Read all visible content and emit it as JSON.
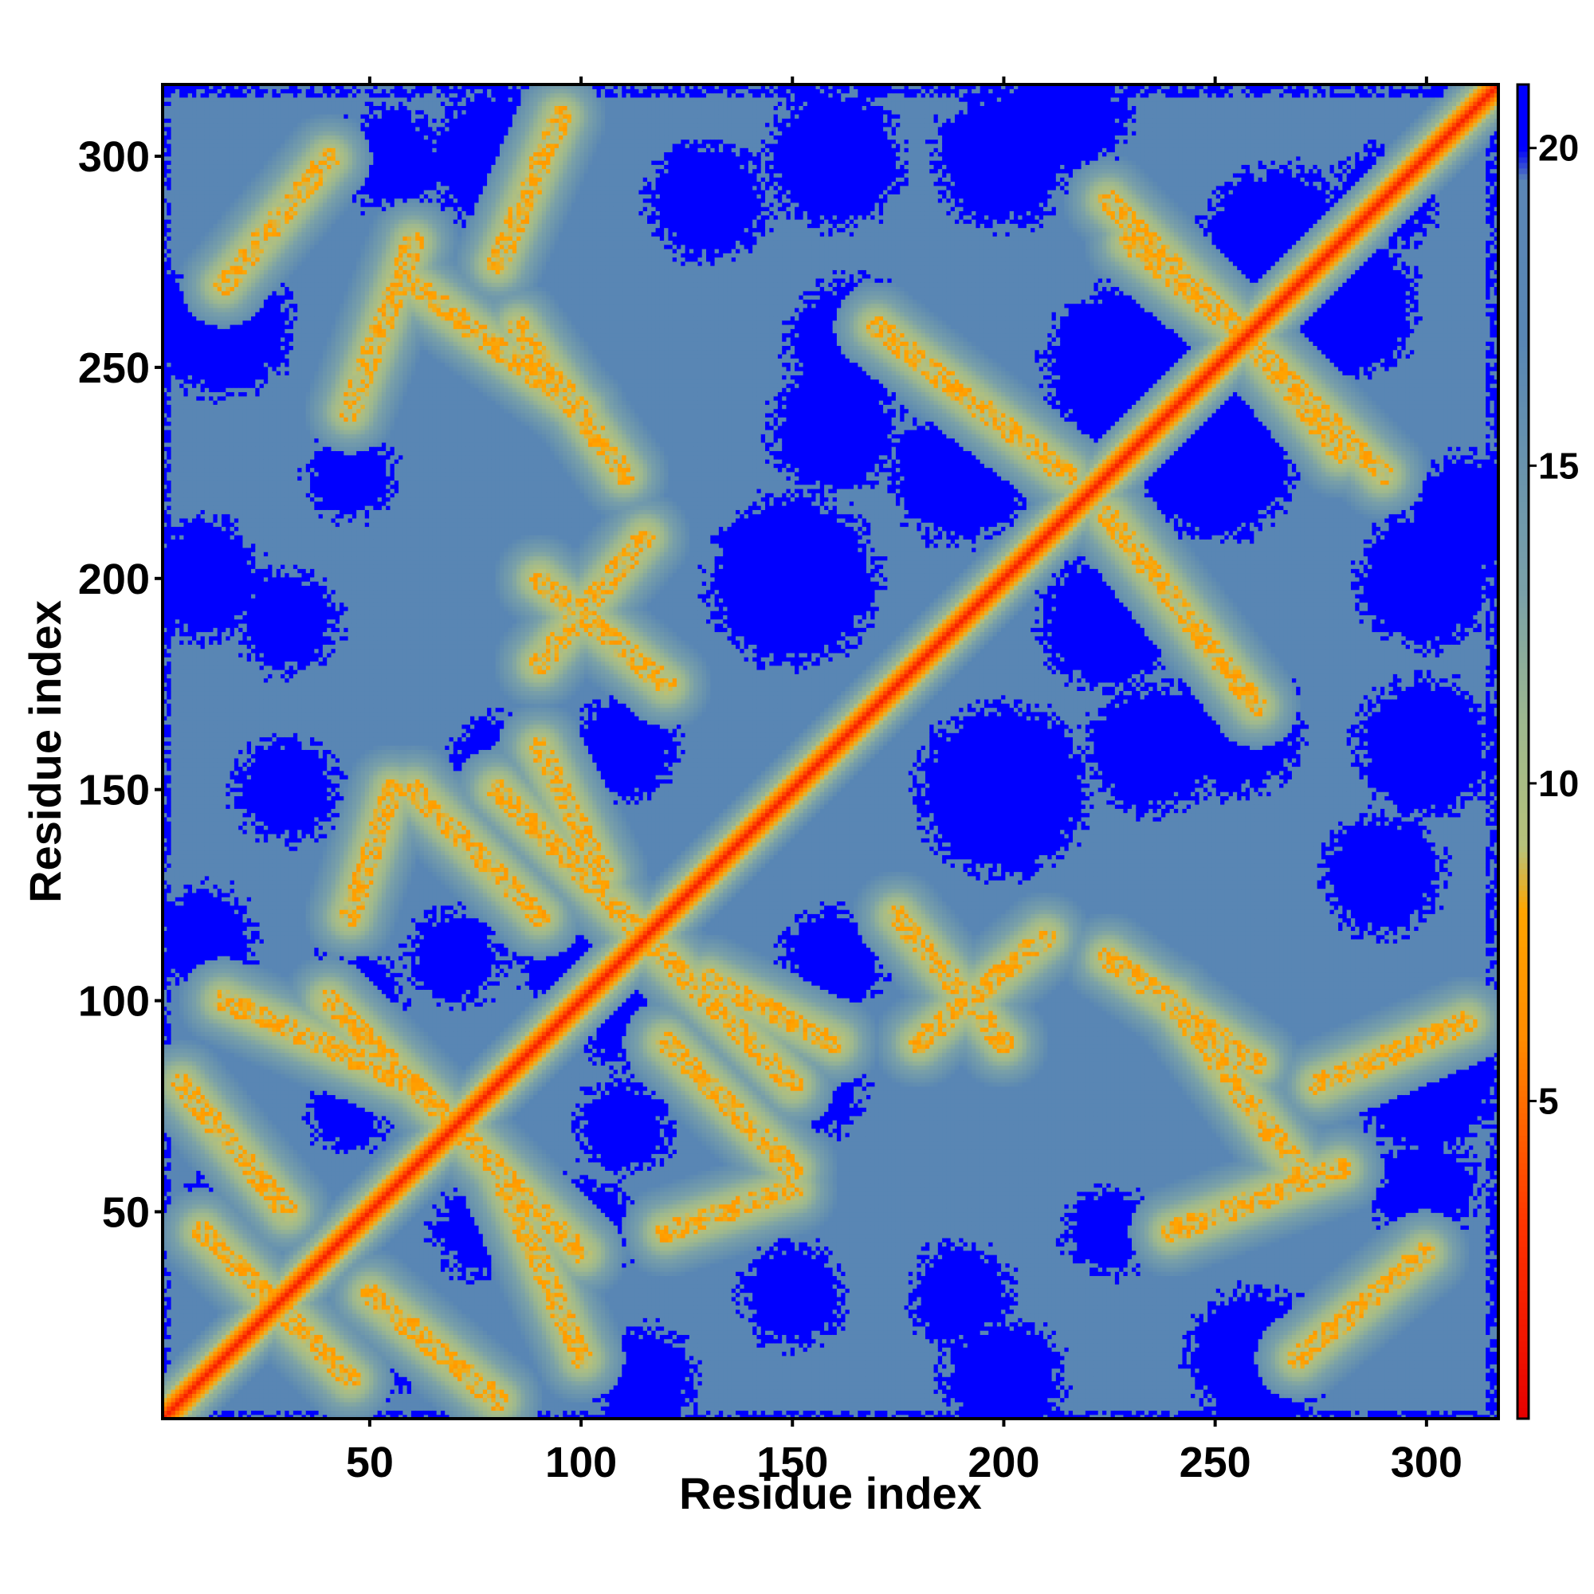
{
  "chart_data": {
    "type": "heatmap",
    "title": "",
    "xlabel": "Residue index",
    "ylabel": "Residue index",
    "xlim": [
      1,
      317
    ],
    "ylim": [
      1,
      317
    ],
    "n_residues": 317,
    "x_ticks": [
      50,
      100,
      150,
      200,
      250,
      300
    ],
    "y_ticks": [
      50,
      100,
      150,
      200,
      250,
      300
    ],
    "x_tick_labels": [
      "50",
      "100",
      "150",
      "200",
      "250",
      "300"
    ],
    "y_tick_labels": [
      "50",
      "100",
      "150",
      "200",
      "250",
      "300"
    ],
    "colorbar": {
      "range": [
        0,
        21
      ],
      "ticks": [
        5,
        10,
        15,
        20
      ],
      "tick_labels": [
        "5",
        "10",
        "15",
        "20"
      ],
      "stops": [
        {
          "value": 0,
          "color": "#e60000"
        },
        {
          "value": 3,
          "color": "#ff3300"
        },
        {
          "value": 6,
          "color": "#ff8c00"
        },
        {
          "value": 8,
          "color": "#ffa500"
        },
        {
          "value": 9,
          "color": "#b7c27a"
        },
        {
          "value": 11,
          "color": "#9db88f"
        },
        {
          "value": 13,
          "color": "#7aa1a8"
        },
        {
          "value": 17,
          "color": "#5886b4"
        },
        {
          "value": 19.5,
          "color": "#5b86b5"
        },
        {
          "value": 20,
          "color": "#0000ff"
        },
        {
          "value": 21,
          "color": "#0000ff"
        }
      ]
    },
    "diagonal_band": [
      {
        "from": 1,
        "to": 317,
        "center_value": 2,
        "half_width_residues": 6
      }
    ],
    "off_diagonal_contact_bands": [
      {
        "from": [
          10,
          45
        ],
        "to": [
          45,
          10
        ]
      },
      {
        "from": [
          15,
          100
        ],
        "to": [
          60,
          80
        ]
      },
      {
        "from": [
          40,
          100
        ],
        "to": [
          80,
          60
        ]
      },
      {
        "from": [
          50,
          30
        ],
        "to": [
          80,
          5
        ]
      },
      {
        "from": [
          60,
          150
        ],
        "to": [
          90,
          120
        ]
      },
      {
        "from": [
          60,
          270
        ],
        "to": [
          100,
          240
        ]
      },
      {
        "from": [
          80,
          150
        ],
        "to": [
          120,
          110
        ]
      },
      {
        "from": [
          90,
          200
        ],
        "to": [
          120,
          175
        ]
      },
      {
        "from": [
          120,
          45
        ],
        "to": [
          150,
          55
        ]
      },
      {
        "from": [
          130,
          105
        ],
        "to": [
          160,
          90
        ]
      },
      {
        "from": [
          170,
          260
        ],
        "to": [
          215,
          225
        ]
      },
      {
        "from": [
          180,
          90
        ],
        "to": [
          210,
          115
        ]
      },
      {
        "from": [
          225,
          110
        ],
        "to": [
          260,
          85
        ]
      },
      {
        "from": [
          230,
          280
        ],
        "to": [
          255,
          260
        ]
      },
      {
        "from": [
          240,
          45
        ],
        "to": [
          280,
          60
        ]
      },
      {
        "from": [
          260,
          255
        ],
        "to": [
          290,
          225
        ]
      },
      {
        "from": [
          270,
          15
        ],
        "to": [
          300,
          40
        ]
      },
      {
        "from": [
          275,
          80
        ],
        "to": [
          310,
          95
        ]
      }
    ],
    "far_regions": [
      {
        "center": [
          50,
          20
        ],
        "radius": 14
      },
      {
        "center": [
          100,
          45
        ],
        "radius": 12
      },
      {
        "center": [
          155,
          80
        ],
        "radius": 12
      },
      {
        "center": [
          110,
          95
        ],
        "radius": 10
      },
      {
        "center": [
          45,
          75
        ],
        "radius": 10
      },
      {
        "center": [
          70,
          110
        ],
        "radius": 11
      },
      {
        "center": [
          110,
          160
        ],
        "radius": 12
      },
      {
        "center": [
          200,
          150
        ],
        "radius": 20
      },
      {
        "center": [
          250,
          230
        ],
        "radius": 20
      },
      {
        "center": [
          265,
          280
        ],
        "radius": 18
      },
      {
        "center": [
          235,
          160
        ],
        "radius": 15
      },
      {
        "center": [
          165,
          255
        ],
        "radius": 16
      },
      {
        "center": [
          190,
          225
        ],
        "radius": 16
      },
      {
        "center": [
          150,
          30
        ],
        "radius": 12
      },
      {
        "center": [
          300,
          55
        ],
        "radius": 12
      },
      {
        "center": [
          310,
          215
        ],
        "radius": 14
      },
      {
        "center": [
          15,
          260
        ],
        "radius": 16
      },
      {
        "center": [
          30,
          190
        ],
        "radius": 12
      },
      {
        "center": [
          45,
          225
        ],
        "radius": 10
      },
      {
        "center": [
          80,
          300
        ],
        "radius": 16
      },
      {
        "center": [
          130,
          290
        ],
        "radius": 14
      },
      {
        "center": [
          200,
          300
        ],
        "radius": 16
      },
      {
        "center": [
          300,
          160
        ],
        "radius": 16
      },
      {
        "center": [
          290,
          290
        ],
        "radius": 12
      },
      {
        "center": [
          10,
          115
        ],
        "radius": 12
      },
      {
        "center": [
          260,
          10
        ],
        "radius": 14
      },
      {
        "center": [
          200,
          10
        ],
        "radius": 14
      }
    ]
  }
}
